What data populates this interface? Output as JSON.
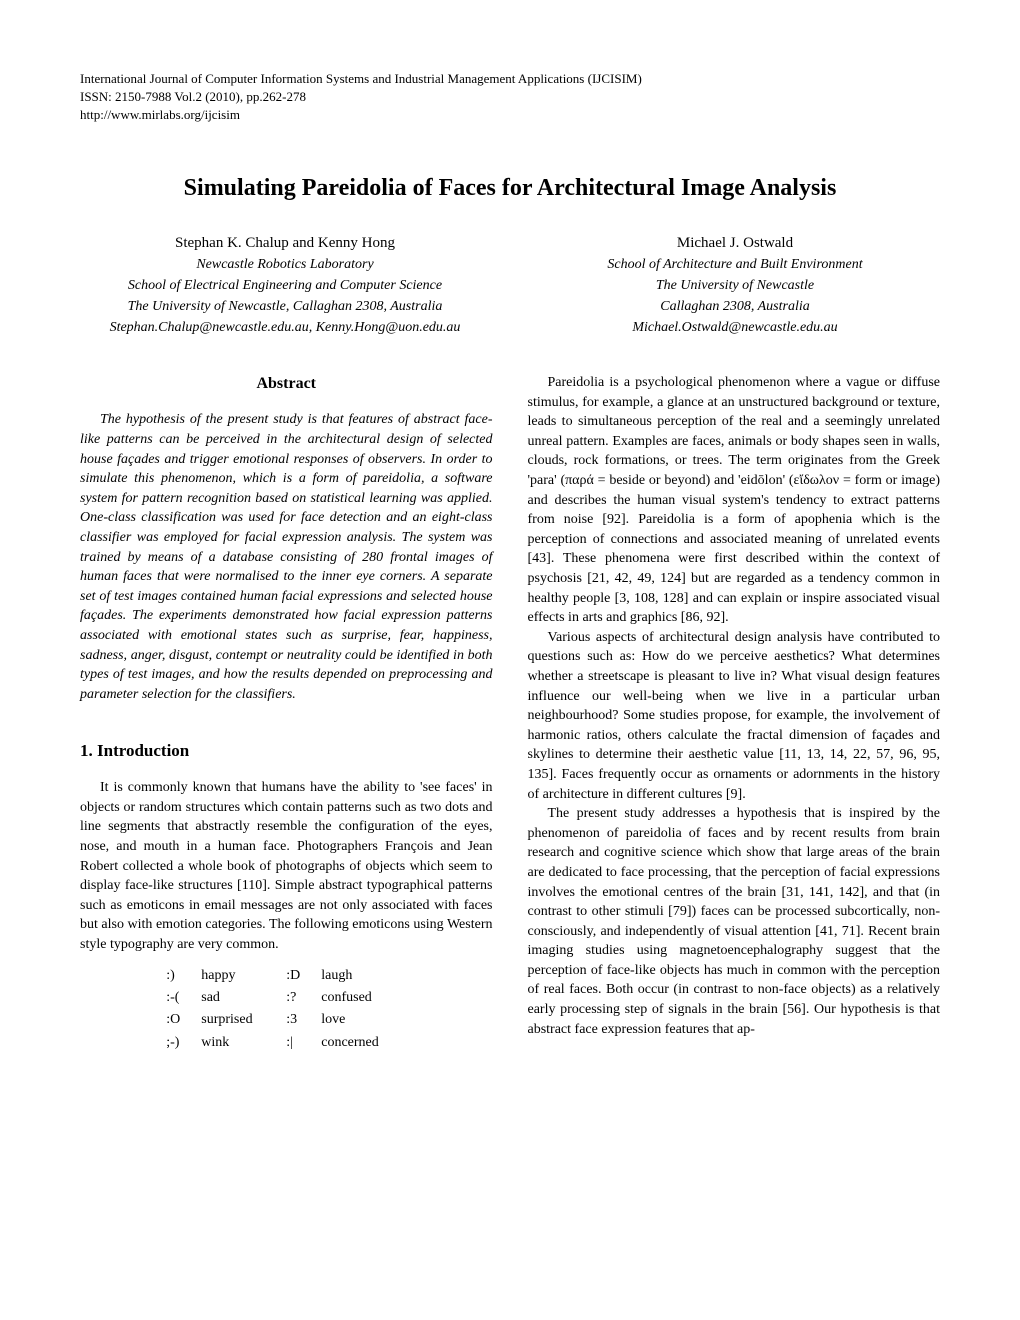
{
  "header": {
    "line1": "International Journal of Computer Information Systems and Industrial Management Applications (IJCISIM)",
    "line2": "ISSN: 2150-7988 Vol.2 (2010), pp.262-278",
    "line3": "http://www.mirlabs.org/ijcisim"
  },
  "title": "Simulating Pareidolia of Faces for Architectural Image Analysis",
  "authorLeft": {
    "names": "Stephan K. Chalup and Kenny Hong",
    "affil": [
      "Newcastle Robotics Laboratory",
      "School of Electrical Engineering and Computer Science",
      "The University of Newcastle, Callaghan 2308, Australia",
      "Stephan.Chalup@newcastle.edu.au, Kenny.Hong@uon.edu.au"
    ]
  },
  "authorRight": {
    "names": "Michael J. Ostwald",
    "affil": [
      "School of Architecture and Built Environment",
      "The University of Newcastle",
      "Callaghan 2308, Australia",
      "Michael.Ostwald@newcastle.edu.au"
    ]
  },
  "abstractHeading": "Abstract",
  "abstractText": "The hypothesis of the present study is that features of abstract face-like patterns can be perceived in the architectural design of selected house façades and trigger emotional responses of observers. In order to simulate this phenomenon, which is a form of pareidolia, a software system for pattern recognition based on statistical learning was applied. One-class classification was used for face detection and an eight-class classifier was employed for facial expression analysis. The system was trained by means of a database consisting of 280 frontal images of human faces that were normalised to the inner eye corners. A separate set of test images contained human facial expressions and selected house façades. The experiments demonstrated how facial expression patterns associated with emotional states such as surprise, fear, happiness, sadness, anger, disgust, contempt or neutrality could be identified in both types of test images, and how the results depended on preprocessing and parameter selection for the classifiers.",
  "sectionHeading": "1. Introduction",
  "introPara1": "It is commonly known that humans have the ability to 'see faces' in objects or random structures which contain patterns such as two dots and line segments that abstractly resemble the configuration of the eyes, nose, and mouth in a human face. Photographers François and Jean Robert collected a whole book of photographs of objects which seem to display face-like structures [110]. Simple abstract typographical patterns such as emoticons in email messages are not only associated with faces but also with emotion categories. The following emoticons using Western style typography are very common.",
  "emoticons": {
    "rows": [
      [
        ":)",
        "happy",
        ":D",
        "laugh"
      ],
      [
        ":-(",
        "sad",
        ":?",
        "confused"
      ],
      [
        ":O",
        "surprised",
        ":3",
        "love"
      ],
      [
        ";-)",
        "wink",
        ":|",
        "concerned"
      ]
    ]
  },
  "rightPara1": "Pareidolia is a psychological phenomenon where a vague or diffuse stimulus, for example, a glance at an unstructured background or texture, leads to simultaneous perception of the real and a seemingly unrelated unreal pattern. Examples are faces, animals or body shapes seen in walls, clouds, rock formations, or trees. The term originates from the Greek 'para' (παρά = beside or beyond) and 'eidōlon' (εἴδωλον = form or image) and describes the human visual system's tendency to extract patterns from noise [92]. Pareidolia is a form of apophenia which is the perception of connections and associated meaning of unrelated events [43]. These phenomena were first described within the context of psychosis [21, 42, 49, 124] but are regarded as a tendency common in healthy people [3, 108, 128] and can explain or inspire associated visual effects in arts and graphics [86, 92].",
  "rightPara2": "Various aspects of architectural design analysis have contributed to questions such as: How do we perceive aesthetics? What determines whether a streetscape is pleasant to live in? What visual design features influence our well-being when we live in a particular urban neighbourhood? Some studies propose, for example, the involvement of harmonic ratios, others calculate the fractal dimension of façades and skylines to determine their aesthetic value [11, 13, 14, 22, 57, 96, 95, 135]. Faces frequently occur as ornaments or adornments in the history of architecture in different cultures [9].",
  "rightPara3": "The present study addresses a hypothesis that is inspired by the phenomenon of pareidolia of faces and by recent results from brain research and cognitive science which show that large areas of the brain are dedicated to face processing, that the perception of facial expressions involves the emotional centres of the brain [31, 141, 142], and that (in contrast to other stimuli [79]) faces can be processed subcortically, non-consciously, and independently of visual attention [41, 71]. Recent brain imaging studies using magnetoencephalography suggest that the perception of face-like objects has much in common with the perception of real faces. Both occur (in contrast to non-face objects) as a relatively early processing step of signals in the brain [56]. Our hypothesis is that abstract face expression features that ap-"
}
